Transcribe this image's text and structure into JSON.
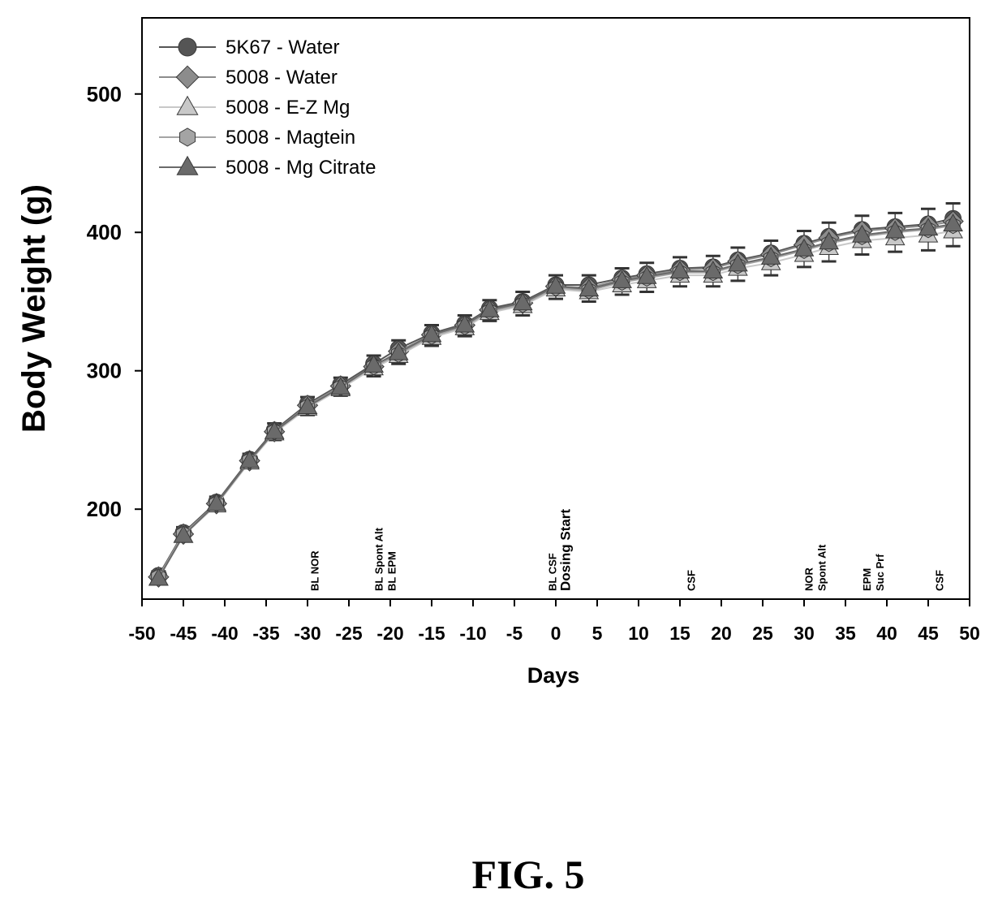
{
  "figure_label": "FIG. 5",
  "chart_data": {
    "type": "line",
    "title": "",
    "xlabel": "Days",
    "ylabel": "Body Weight (g)",
    "xlim": [
      -50,
      50
    ],
    "ylim": [
      135,
      555
    ],
    "x_ticks": [
      -50,
      -45,
      -40,
      -35,
      -30,
      -25,
      -20,
      -15,
      -10,
      -5,
      0,
      5,
      10,
      15,
      20,
      25,
      30,
      35,
      40,
      45,
      50
    ],
    "y_ticks": [
      200,
      300,
      400,
      500
    ],
    "grid": false,
    "legend_position": "top-left",
    "x": [
      -48,
      -45,
      -41,
      -37,
      -34,
      -30,
      -26,
      -22,
      -19,
      -15,
      -11,
      -8,
      -4,
      0,
      4,
      8,
      11,
      15,
      19,
      22,
      26,
      30,
      33,
      37,
      41,
      45,
      48
    ],
    "series": [
      {
        "name": "5K67 - Water",
        "marker": "circle",
        "color": "#555555",
        "values": [
          152,
          183,
          205,
          236,
          257,
          276,
          290,
          305,
          316,
          327,
          334,
          345,
          350,
          362,
          362,
          367,
          370,
          374,
          375,
          380,
          385,
          392,
          397,
          402,
          404,
          406,
          410
        ]
      },
      {
        "name": "5008 - Water",
        "marker": "diamond",
        "color": "#8c8c8c",
        "values": [
          151,
          182,
          204,
          235,
          256,
          275,
          289,
          303,
          314,
          326,
          333,
          344,
          349,
          361,
          360,
          366,
          369,
          373,
          374,
          379,
          384,
          391,
          396,
          401,
          403,
          405,
          408
        ]
      },
      {
        "name": "5008 - E-Z Mg",
        "marker": "triangle",
        "color": "#c8c8c8",
        "values": [
          150,
          181,
          203,
          234,
          255,
          273,
          287,
          302,
          311,
          324,
          331,
          342,
          347,
          359,
          357,
          362,
          365,
          369,
          369,
          374,
          378,
          384,
          389,
          394,
          396,
          398,
          401
        ]
      },
      {
        "name": "5008 - Magtein",
        "marker": "hexagon",
        "color": "#a4a4a4",
        "values": [
          151,
          182,
          204,
          235,
          256,
          274,
          288,
          303,
          312,
          325,
          332,
          343,
          348,
          360,
          358,
          364,
          367,
          371,
          371,
          376,
          381,
          387,
          392,
          397,
          400,
          402,
          405
        ]
      },
      {
        "name": "5008 - Mg Citrate",
        "marker": "triangle",
        "color": "#6a6a6a",
        "values": [
          150,
          181,
          204,
          235,
          256,
          274,
          288,
          304,
          313,
          326,
          333,
          344,
          349,
          361,
          359,
          365,
          368,
          372,
          372,
          377,
          382,
          388,
          393,
          398,
          401,
          403,
          406
        ]
      }
    ],
    "error_bar_sd": [
      3,
      4,
      4,
      4,
      5,
      5,
      5,
      6,
      6,
      6,
      6,
      6,
      7,
      7,
      7,
      7,
      8,
      8,
      8,
      9,
      9,
      9,
      10,
      10,
      10,
      11,
      11
    ],
    "annotations": [
      {
        "x": -29,
        "lines": [
          "BL NOR"
        ]
      },
      {
        "x": -20.5,
        "lines": [
          "BL Spont Alt",
          "BL EPM"
        ]
      },
      {
        "x": 0.5,
        "lines": [
          "BL CSF",
          "Dosing Start"
        ]
      },
      {
        "x": 16.5,
        "lines": [
          "CSF"
        ]
      },
      {
        "x": 31.5,
        "lines": [
          "NOR",
          "Spont Alt"
        ]
      },
      {
        "x": 38.5,
        "lines": [
          "EPM",
          "Suc Prf"
        ]
      },
      {
        "x": 46.5,
        "lines": [
          "CSF"
        ]
      }
    ]
  }
}
